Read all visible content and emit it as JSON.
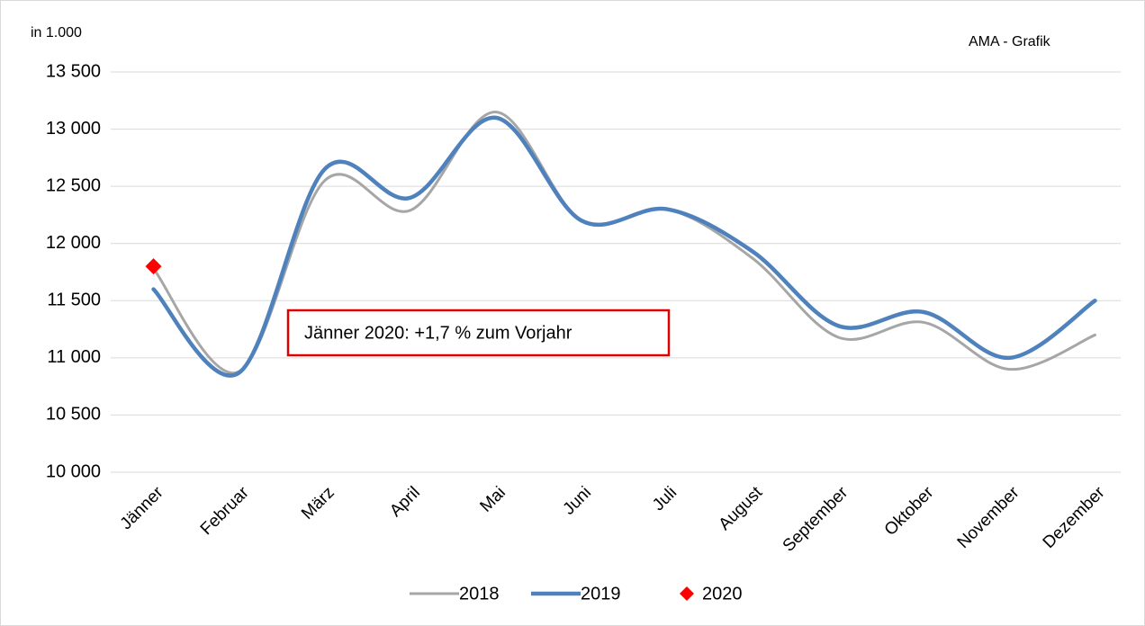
{
  "chart_data": {
    "type": "line",
    "unit_label": "in 1.000",
    "source": "AMA - Grafik",
    "annotation": "Jänner 2020: +1,7 % zum Vorjahr",
    "categories": [
      "Jänner",
      "Februar",
      "März",
      "April",
      "Mai",
      "Juni",
      "Juli",
      "August",
      "September",
      "Oktober",
      "November",
      "Dezember"
    ],
    "series": [
      {
        "name": "2018",
        "color": "#a6a6a6",
        "width": 3,
        "values": [
          11780,
          10880,
          12550,
          12290,
          13150,
          12200,
          12300,
          11870,
          11180,
          11310,
          10900,
          11200
        ]
      },
      {
        "name": "2019",
        "color": "#4f81bd",
        "width": 4.5,
        "values": [
          11600,
          10870,
          12650,
          12400,
          13100,
          12200,
          12300,
          11930,
          11280,
          11400,
          11000,
          11500
        ]
      },
      {
        "name": "2020",
        "color": "#ff0000",
        "marker": "diamond",
        "values": [
          11800,
          null,
          null,
          null,
          null,
          null,
          null,
          null,
          null,
          null,
          null,
          null
        ]
      }
    ],
    "ylim": [
      10000,
      13500
    ],
    "yticks": [
      {
        "value": 10000,
        "label": "10 000"
      },
      {
        "value": 10500,
        "label": "10 500"
      },
      {
        "value": 11000,
        "label": "11 000"
      },
      {
        "value": 11500,
        "label": "11 500"
      },
      {
        "value": 12000,
        "label": "12 000"
      },
      {
        "value": 12500,
        "label": "12 500"
      },
      {
        "value": 13000,
        "label": "13 000"
      },
      {
        "value": 13500,
        "label": "13 500"
      }
    ],
    "grid": true
  }
}
